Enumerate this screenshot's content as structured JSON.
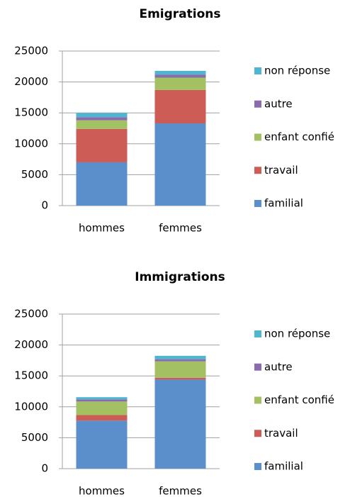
{
  "chart_data": [
    {
      "type": "stacked_bar",
      "title": "Emigrations",
      "categories": [
        "hommes",
        "femmes"
      ],
      "series": [
        {
          "name": "familial",
          "color": "#5b8fcb",
          "values": [
            7000,
            13300
          ]
        },
        {
          "name": "travail",
          "color": "#cd5c57",
          "values": [
            5400,
            5400
          ]
        },
        {
          "name": "enfant confié",
          "color": "#a3c163",
          "values": [
            1400,
            2000
          ]
        },
        {
          "name": "autre",
          "color": "#8a6bae",
          "values": [
            500,
            500
          ]
        },
        {
          "name": "non réponse",
          "color": "#4fb6cf",
          "values": [
            700,
            600
          ]
        }
      ],
      "ylim": [
        0,
        25000
      ],
      "yticks": [
        0,
        5000,
        10000,
        15000,
        20000,
        25000
      ],
      "grid": true,
      "legend": "right"
    },
    {
      "type": "stacked_bar",
      "title": "Immigrations",
      "categories": [
        "hommes",
        "femmes"
      ],
      "series": [
        {
          "name": "familial",
          "color": "#5b8fcb",
          "values": [
            7760,
            14400
          ]
        },
        {
          "name": "travail",
          "color": "#cd5c57",
          "values": [
            900,
            300
          ]
        },
        {
          "name": "enfant confié",
          "color": "#a3c163",
          "values": [
            2200,
            2650
          ]
        },
        {
          "name": "autre",
          "color": "#8a6bae",
          "values": [
            350,
            350
          ]
        },
        {
          "name": "non réponse",
          "color": "#4fb6cf",
          "values": [
            350,
            550
          ]
        }
      ],
      "ylim": [
        0,
        25000
      ],
      "yticks": [
        0,
        5000,
        10000,
        15000,
        20000,
        25000
      ],
      "grid": true,
      "legend": "right"
    }
  ]
}
